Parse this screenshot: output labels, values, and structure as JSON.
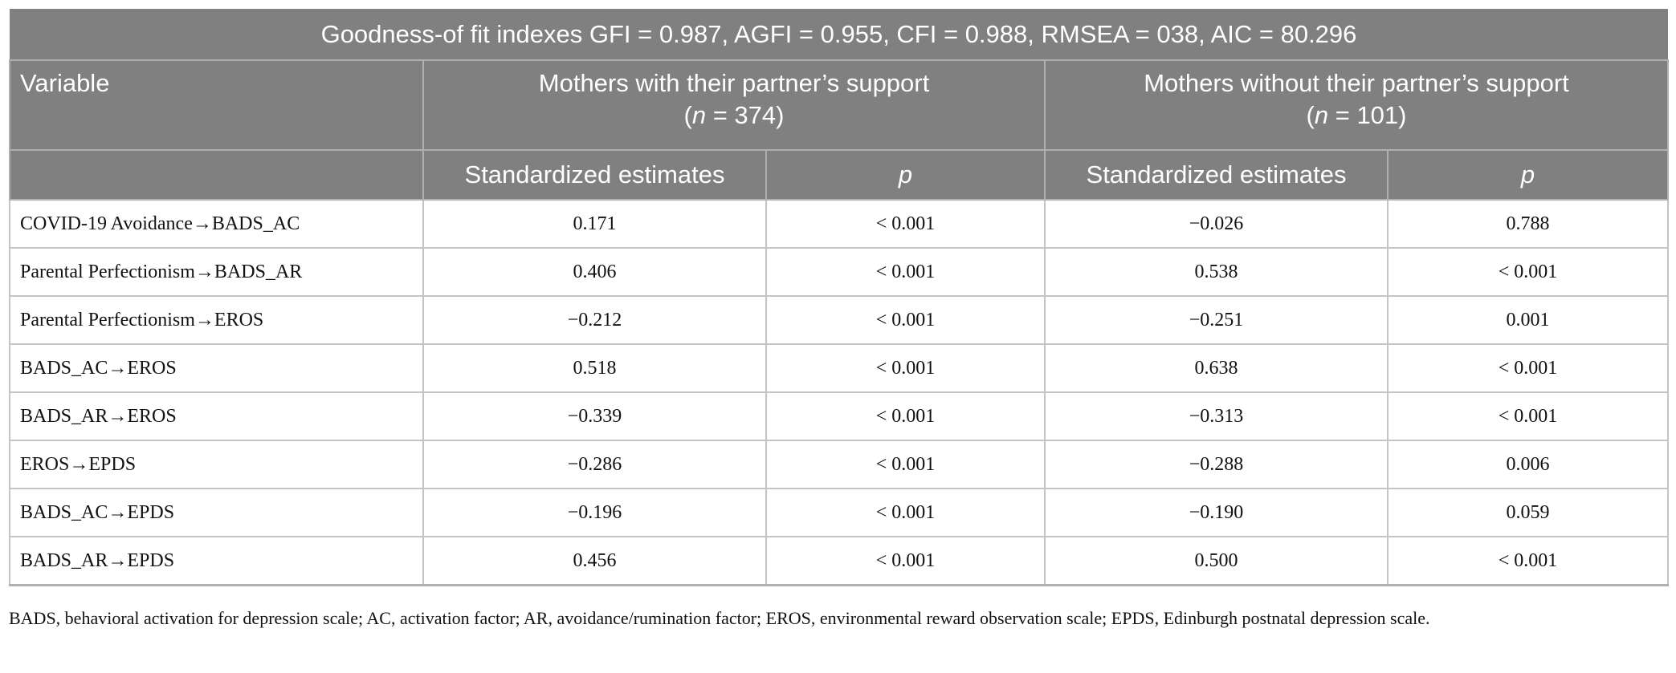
{
  "table": {
    "title": "Goodness-of fit indexes GFI = 0.987, AGFI = 0.955, CFI = 0.988, RMSEA = 038, AIC = 80.296",
    "variable_header": "Variable",
    "groups": [
      {
        "name": "Mothers with their partner’s support",
        "n_open": "(",
        "n_symbol": "n",
        "n_rest": " = 374)"
      },
      {
        "name": "Mothers without their partner’s support",
        "n_open": "(",
        "n_symbol": "n",
        "n_rest": " = 101)"
      }
    ],
    "subheaders": [
      "Standardized estimates",
      "p",
      "Standardized estimates",
      "p"
    ],
    "rows": [
      [
        "COVID-19 Avoidance→BADS_AC",
        "0.171",
        "< 0.001",
        "−0.026",
        "0.788"
      ],
      [
        "Parental Perfectionism→BADS_AR",
        "0.406",
        "< 0.001",
        "0.538",
        "< 0.001"
      ],
      [
        "Parental Perfectionism→EROS",
        "−0.212",
        "< 0.001",
        "−0.251",
        "0.001"
      ],
      [
        "BADS_AC→EROS",
        "0.518",
        "< 0.001",
        "0.638",
        "< 0.001"
      ],
      [
        "BADS_AR→EROS",
        "−0.339",
        "< 0.001",
        "−0.313",
        "< 0.001"
      ],
      [
        "EROS→EPDS",
        "−0.286",
        "< 0.001",
        "−0.288",
        "0.006"
      ],
      [
        "BADS_AC→EPDS",
        "−0.196",
        "< 0.001",
        "−0.190",
        "0.059"
      ],
      [
        "BADS_AR→EPDS",
        "0.456",
        "< 0.001",
        "0.500",
        "< 0.001"
      ]
    ]
  },
  "footnote": "BADS, behavioral activation for depression scale; AC, activation factor; AR, avoidance/rumination factor; EROS, environmental reward observation scale; EPDS, Edinburgh postnatal depression scale."
}
